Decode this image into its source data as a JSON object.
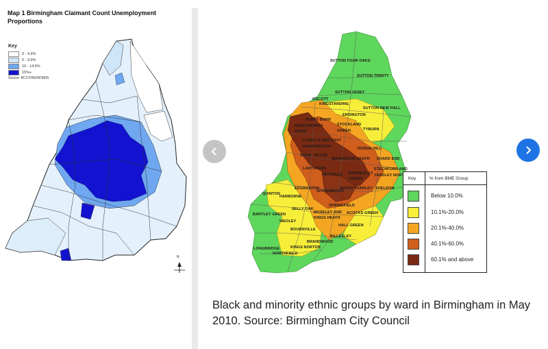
{
  "map1": {
    "title": "Map 1 Birmingham Claimant Count Unemployment Proportions",
    "key_title": "Key",
    "key": [
      {
        "label": "0 - 4.9%",
        "color": "#ffffff"
      },
      {
        "label": "5 - 9.9%",
        "color": "#cfe6fa"
      },
      {
        "label": "10 - 14.9%",
        "color": "#6fa8f0"
      },
      {
        "label": "15%+",
        "color": "#1212d0"
      }
    ],
    "source": "Source: BCC/ONS/NOMIS",
    "compass": "N"
  },
  "map2": {
    "wards": [
      "SUTTON FOUR OAKS",
      "SUTTON TRINITY",
      "SUTTON VESEY",
      "OSCOTT",
      "KINGSTANDING",
      "SUTTON NEW HALL",
      "ERDINGTON",
      "PERRY BARR",
      "HANDSWORTH WOOD",
      "STOCKLAND GREEN",
      "TYBURN",
      "LOZELLS AND EAST HANDSWORTH",
      "HODGE HILL",
      "SOHO",
      "ASTON",
      "WASHWOOD HEATH",
      "SHARD END",
      "LADYWOOD",
      "NECHELLS",
      "BORDESLEY GREEN",
      "STECHFORD AND YARDLEY NORTH",
      "SOUTH YARDLEY",
      "SHELDON",
      "EDGBASTON",
      "SPARKBROOK",
      "QUINTON",
      "HARBORNE",
      "SELLY OAK",
      "SPRINGFIELD",
      "MOSELEY AND KINGS HEATH",
      "ACOCKS GREEN",
      "BARTLEY GREEN",
      "WEOLEY",
      "HALL GREEN",
      "BOURNVILLE",
      "BILLESLEY",
      "BRANDWOOD",
      "LONGBRIDGE",
      "KINGS NORTON",
      "NORTHFIELD"
    ],
    "legend": {
      "key_header": "Key",
      "group_header": "% from BME Group",
      "items": [
        {
          "label": "Below 10.0%",
          "color": "#5fd65c"
        },
        {
          "label": "10.1%-20.0%",
          "color": "#f7ee3a"
        },
        {
          "label": "20.1%-40.0%",
          "color": "#f4a623"
        },
        {
          "label": "40.1%-60.0%",
          "color": "#d05e1c"
        },
        {
          "label": "60.1% and above",
          "color": "#7a2a12"
        }
      ]
    }
  },
  "caption": "Black and minority ethnic groups by ward in Birmingham in May 2010. Source: Birmingham City Council",
  "icons": {
    "prev": "chevron-left-icon",
    "next": "chevron-right-icon"
  }
}
